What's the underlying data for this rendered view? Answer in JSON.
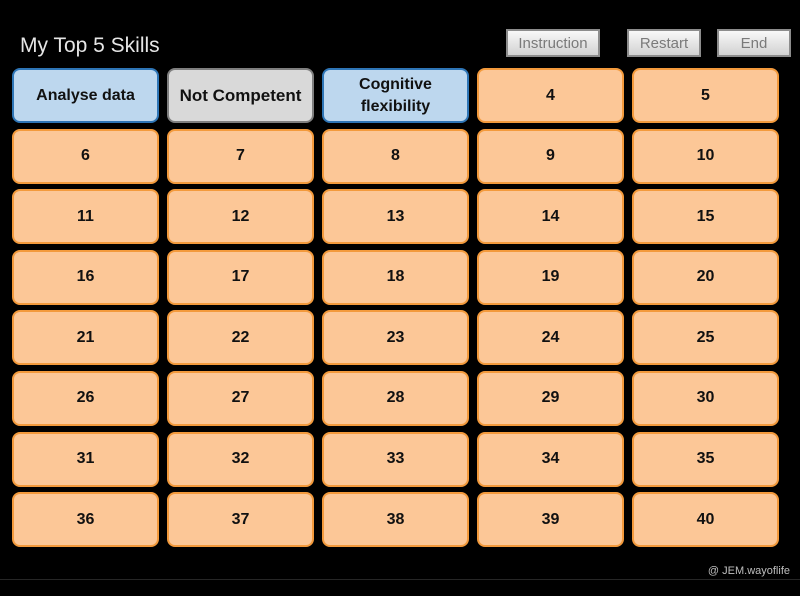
{
  "header": {
    "title": "My Top 5 Skills"
  },
  "buttons": {
    "instruction": "Instruction",
    "restart": "Restart",
    "end": "End"
  },
  "tiles": [
    {
      "label": "Analyse data",
      "state": "chosen"
    },
    {
      "label": "Not Competent",
      "state": "rejected"
    },
    {
      "label": "Cognitive flexibility",
      "state": "chosen"
    },
    {
      "label": "4",
      "state": "default"
    },
    {
      "label": "5",
      "state": "default"
    },
    {
      "label": "6",
      "state": "default"
    },
    {
      "label": "7",
      "state": "default"
    },
    {
      "label": "8",
      "state": "default"
    },
    {
      "label": "9",
      "state": "default"
    },
    {
      "label": "10",
      "state": "default"
    },
    {
      "label": "11",
      "state": "default"
    },
    {
      "label": "12",
      "state": "default"
    },
    {
      "label": "13",
      "state": "default"
    },
    {
      "label": "14",
      "state": "default"
    },
    {
      "label": "15",
      "state": "default"
    },
    {
      "label": "16",
      "state": "default"
    },
    {
      "label": "17",
      "state": "default"
    },
    {
      "label": "18",
      "state": "default"
    },
    {
      "label": "19",
      "state": "default"
    },
    {
      "label": "20",
      "state": "default"
    },
    {
      "label": "21",
      "state": "default"
    },
    {
      "label": "22",
      "state": "default"
    },
    {
      "label": "23",
      "state": "default"
    },
    {
      "label": "24",
      "state": "default"
    },
    {
      "label": "25",
      "state": "default"
    },
    {
      "label": "26",
      "state": "default"
    },
    {
      "label": "27",
      "state": "default"
    },
    {
      "label": "28",
      "state": "default"
    },
    {
      "label": "29",
      "state": "default"
    },
    {
      "label": "30",
      "state": "default"
    },
    {
      "label": "31",
      "state": "default"
    },
    {
      "label": "32",
      "state": "default"
    },
    {
      "label": "33",
      "state": "default"
    },
    {
      "label": "34",
      "state": "default"
    },
    {
      "label": "35",
      "state": "default"
    },
    {
      "label": "36",
      "state": "default"
    },
    {
      "label": "37",
      "state": "default"
    },
    {
      "label": "38",
      "state": "default"
    },
    {
      "label": "39",
      "state": "default"
    },
    {
      "label": "40",
      "state": "default"
    }
  ],
  "colors": {
    "tile_default": "#fcc797",
    "tile_default_border": "#f39a3c",
    "tile_chosen": "#bdd7ee",
    "tile_chosen_border": "#2e75b6",
    "tile_rejected": "#d9d9d9",
    "tile_rejected_border": "#7f7f7f"
  },
  "footer": {
    "credit": "@ JEM.wayoflife"
  }
}
